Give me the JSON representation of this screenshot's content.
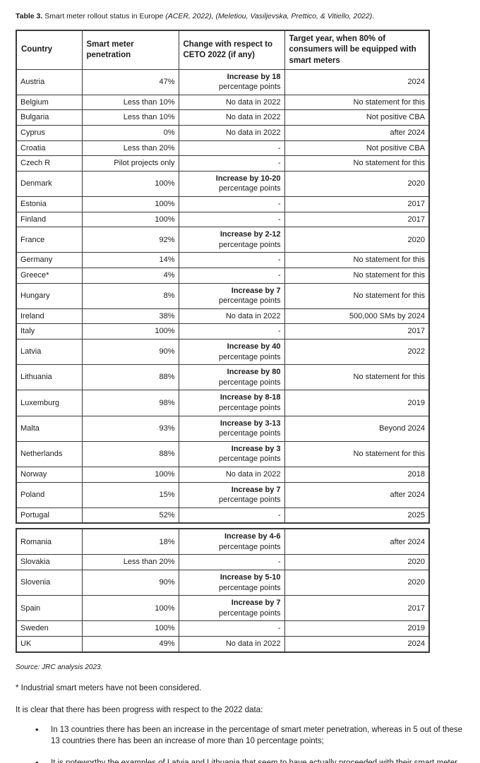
{
  "caption": {
    "label": "Table 3.",
    "text": "Smart meter rollout status in Europe",
    "citation": "(ACER, 2022), (Meletiou, Vasiljevska, Prettico, & Vitiello, 2022)."
  },
  "table": {
    "headers": [
      "Country",
      "Smart meter penetration",
      "Change with respect to CETO 2022  (if any)",
      "Target year, when 80% of consumers will be equipped with smart meters"
    ],
    "rows": [
      {
        "country": "Austria",
        "penetration": "47%",
        "change": "Increase by 18",
        "change_sub": "percentage points",
        "target": "2024"
      },
      {
        "country": "Belgium",
        "penetration": "Less than 10%",
        "change": "No data in 2022",
        "target": "No statement for this"
      },
      {
        "country": "Bulgaria",
        "penetration": "Less than 10%",
        "change": "No data in 2022",
        "target": "Not positive CBA"
      },
      {
        "country": "Cyprus",
        "penetration": "0%",
        "change": "No data in 2022",
        "target": "after 2024"
      },
      {
        "country": "Croatia",
        "penetration": "Less than 20%",
        "change": "-",
        "target": "Not positive CBA"
      },
      {
        "country": "Czech R",
        "penetration": "Pilot projects only",
        "change": "-",
        "target": "No statement for this"
      },
      {
        "country": "Denmark",
        "penetration": "100%",
        "change": "Increase by 10-20",
        "change_sub": "percentage points",
        "target": "2020"
      },
      {
        "country": "Estonia",
        "penetration": "100%",
        "change": "-",
        "target": "2017"
      },
      {
        "country": "Finland",
        "penetration": "100%",
        "change": "-",
        "target": "2017"
      },
      {
        "country": "France",
        "penetration": "92%",
        "change": "Increase by 2-12",
        "change_sub": "percentage points",
        "target": "2020"
      },
      {
        "country": "Germany",
        "penetration": "14%",
        "change": "-",
        "target": "No statement for this"
      },
      {
        "country": "Greece*",
        "penetration": "4%",
        "change": "-",
        "target": "No statement for this"
      },
      {
        "country": "Hungary",
        "penetration": "8%",
        "change": "Increase by 7",
        "change_sub": "percentage points",
        "target": "No statement for this"
      },
      {
        "country": "Ireland",
        "penetration": "38%",
        "change": "No data in 2022",
        "target": "500,000 SMs by 2024"
      },
      {
        "country": "Italy",
        "penetration": "100%",
        "change": "-",
        "target": "2017"
      },
      {
        "country": "Latvia",
        "penetration": "90%",
        "change": "Increase by 40",
        "change_sub": "percentage points",
        "target": "2022"
      },
      {
        "country": "Lithuania",
        "penetration": "88%",
        "change": "Increase by 80",
        "change_sub": "percentage points",
        "target": "No statement for this"
      },
      {
        "country": "Luxemburg",
        "penetration": "98%",
        "change": "Increase by 8-18",
        "change_sub": "percentage points",
        "target": "2019"
      },
      {
        "country": "Malta",
        "penetration": "93%",
        "change": "Increase by 3-13",
        "change_sub": "percentage points",
        "target": "Beyond 2024"
      },
      {
        "country": "Netherlands",
        "penetration": "88%",
        "change": "Increase by 3",
        "change_sub": "percentage points",
        "target": "No statement for this"
      },
      {
        "country": "Norway",
        "penetration": "100%",
        "change": "No data in 2022",
        "target": "2018"
      },
      {
        "country": "Poland",
        "penetration": "15%",
        "change": "Increase by 7",
        "change_sub": "percentage points",
        "target": "after 2024"
      },
      {
        "country": "Portugal",
        "penetration": "52%",
        "change": "-",
        "target": "2025"
      }
    ],
    "rows2": [
      {
        "country": "Romania",
        "penetration": "18%",
        "change": "Increase by 4-6",
        "change_sub": "percentage points",
        "target": "after 2024"
      },
      {
        "country": "Slovakia",
        "penetration": "Less than 20%",
        "change": "-",
        "target": "2020"
      },
      {
        "country": "Slovenia",
        "penetration": "90%",
        "change": "Increase by 5-10",
        "change_sub": "percentage points",
        "target": "2020"
      },
      {
        "country": "Spain",
        "penetration": "100%",
        "change": "Increase by 7",
        "change_sub": "percentage points",
        "target": "2017"
      },
      {
        "country": "Sweden",
        "penetration": "100%",
        "change": "-",
        "target": "2019"
      },
      {
        "country": "UK",
        "penetration": "49%",
        "change": "No data in 2022",
        "target": "2024"
      }
    ]
  },
  "notes": {
    "source": "Source: JRC analysis 2023.",
    "footnote": "* Industrial smart meters have not been considered.",
    "paragraph": "It is clear that there has been progress with respect to the 2022 data:"
  },
  "bullets": [
    "In 13 countries there has been an increase in the percentage of smart meter penetration, whereas in 5 out of these 13 countries there has been an increase of more than 10 percentage points;",
    "It is noteworthy the examples of Latvia and Lithuania that seem to have actually proceeded with their smart meter rollouts within this last year of observation;"
  ],
  "colors": {
    "text": "#1c1c1c",
    "border": "#3a3a3a",
    "background": "#ffffff"
  }
}
